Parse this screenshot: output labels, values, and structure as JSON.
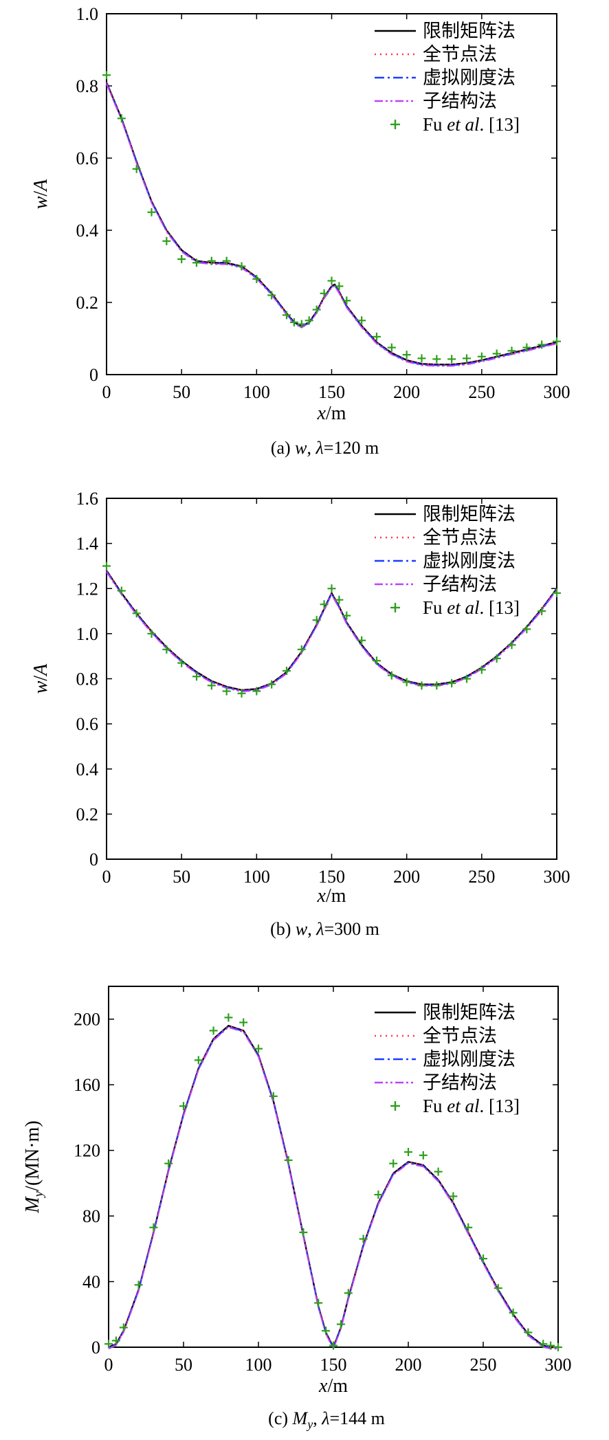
{
  "chart_data": [
    {
      "type": "line",
      "caption": "(a) w, λ=120 m",
      "caption_parts": {
        "label": "(a)",
        "var": "w",
        "sep": ",",
        "lambda": "λ",
        "rest": "=120 m"
      },
      "xlabel": {
        "var": "x",
        "unit": "/m"
      },
      "ylabel": {
        "var": "w",
        "sep": "/",
        "den": "A"
      },
      "xlim": [
        0,
        300
      ],
      "ylim": [
        0,
        1.0
      ],
      "x_ticks": [
        "0",
        "50",
        "100",
        "150",
        "200",
        "250",
        "300"
      ],
      "y_ticks": [
        "0",
        "0.2",
        "0.4",
        "0.6",
        "0.8",
        "1.0"
      ],
      "grid": false,
      "legend_position": "top-right",
      "legend": [
        {
          "name": "限制矩阵法",
          "style": "solid",
          "color": "#000000"
        },
        {
          "name": "全节点法",
          "style": "dotted",
          "color": "#ff3355"
        },
        {
          "name": "虚拟刚度法",
          "style": "dashdot",
          "color": "#1a3dff"
        },
        {
          "name": "子结构法",
          "style": "dashdotdot",
          "color": "#c040ff"
        },
        {
          "name": "Fu et al. [13]",
          "style": "plus",
          "color": "#2e9e1e",
          "parts": [
            "Fu ",
            "et al",
            ". [13]"
          ]
        }
      ],
      "curve": {
        "x": [
          0,
          10,
          20,
          30,
          40,
          50,
          60,
          70,
          80,
          90,
          100,
          110,
          120,
          125,
          130,
          135,
          140,
          145,
          150,
          152,
          155,
          160,
          170,
          180,
          190,
          200,
          210,
          220,
          230,
          240,
          250,
          260,
          270,
          280,
          290,
          300
        ],
        "y": [
          0.81,
          0.71,
          0.59,
          0.48,
          0.4,
          0.345,
          0.315,
          0.31,
          0.31,
          0.3,
          0.27,
          0.225,
          0.17,
          0.145,
          0.135,
          0.145,
          0.175,
          0.215,
          0.245,
          0.25,
          0.23,
          0.19,
          0.135,
          0.09,
          0.06,
          0.04,
          0.03,
          0.028,
          0.028,
          0.032,
          0.04,
          0.05,
          0.06,
          0.07,
          0.08,
          0.09
        ]
      },
      "fu_points": {
        "x": [
          0,
          10,
          20,
          30,
          40,
          50,
          60,
          70,
          80,
          90,
          100,
          110,
          120,
          125,
          130,
          135,
          140,
          145,
          150,
          155,
          160,
          170,
          180,
          190,
          200,
          210,
          220,
          230,
          240,
          250,
          260,
          270,
          280,
          290,
          300
        ],
        "y": [
          0.83,
          0.71,
          0.57,
          0.45,
          0.37,
          0.32,
          0.31,
          0.315,
          0.315,
          0.3,
          0.265,
          0.22,
          0.165,
          0.145,
          0.14,
          0.15,
          0.18,
          0.225,
          0.26,
          0.245,
          0.205,
          0.15,
          0.105,
          0.075,
          0.055,
          0.045,
          0.043,
          0.043,
          0.045,
          0.05,
          0.058,
          0.066,
          0.075,
          0.083,
          0.092
        ]
      }
    },
    {
      "type": "line",
      "caption": "(b) w, λ=300 m",
      "caption_parts": {
        "label": "(b)",
        "var": "w",
        "sep": ",",
        "lambda": "λ",
        "rest": "=300 m"
      },
      "xlabel": {
        "var": "x",
        "unit": "/m"
      },
      "ylabel": {
        "var": "w",
        "sep": "/",
        "den": "A"
      },
      "xlim": [
        0,
        300
      ],
      "ylim": [
        0,
        1.6
      ],
      "x_ticks": [
        "0",
        "50",
        "100",
        "150",
        "200",
        "250",
        "300"
      ],
      "y_ticks": [
        "0",
        "0.2",
        "0.4",
        "0.6",
        "0.8",
        "1.0",
        "1.2",
        "1.4",
        "1.6"
      ],
      "grid": false,
      "legend_position": "top-right",
      "legend": [
        {
          "name": "限制矩阵法",
          "style": "solid",
          "color": "#000000"
        },
        {
          "name": "全节点法",
          "style": "dotted",
          "color": "#ff3355"
        },
        {
          "name": "虚拟刚度法",
          "style": "dashdot",
          "color": "#1a3dff"
        },
        {
          "name": "子结构法",
          "style": "dashdotdot",
          "color": "#c040ff"
        },
        {
          "name": "Fu et al. [13]",
          "style": "plus",
          "color": "#2e9e1e",
          "parts": [
            "Fu ",
            "et al",
            ". [13]"
          ]
        }
      ],
      "curve": {
        "x": [
          0,
          10,
          20,
          30,
          40,
          50,
          60,
          70,
          80,
          90,
          100,
          110,
          120,
          130,
          140,
          145,
          150,
          155,
          160,
          170,
          180,
          190,
          200,
          210,
          220,
          230,
          240,
          250,
          260,
          270,
          280,
          290,
          300
        ],
        "y": [
          1.28,
          1.18,
          1.09,
          1.01,
          0.94,
          0.88,
          0.83,
          0.79,
          0.765,
          0.75,
          0.755,
          0.78,
          0.83,
          0.92,
          1.04,
          1.11,
          1.18,
          1.12,
          1.05,
          0.95,
          0.87,
          0.82,
          0.79,
          0.775,
          0.775,
          0.785,
          0.81,
          0.85,
          0.9,
          0.96,
          1.03,
          1.11,
          1.2
        ]
      },
      "fu_points": {
        "x": [
          0,
          10,
          20,
          30,
          40,
          50,
          60,
          70,
          80,
          90,
          100,
          110,
          120,
          130,
          140,
          145,
          150,
          155,
          160,
          170,
          180,
          190,
          200,
          210,
          220,
          230,
          240,
          250,
          260,
          270,
          280,
          290,
          300
        ],
        "y": [
          1.3,
          1.19,
          1.09,
          1.0,
          0.93,
          0.87,
          0.81,
          0.77,
          0.745,
          0.735,
          0.745,
          0.775,
          0.835,
          0.93,
          1.06,
          1.13,
          1.2,
          1.15,
          1.08,
          0.97,
          0.88,
          0.815,
          0.785,
          0.77,
          0.77,
          0.78,
          0.8,
          0.84,
          0.89,
          0.95,
          1.02,
          1.1,
          1.18
        ]
      }
    },
    {
      "type": "line",
      "caption": "(c) My, λ=144 m",
      "caption_parts": {
        "label": "(c)",
        "var": "M",
        "sub": "y",
        "sep": ",",
        "lambda": "λ",
        "rest": "=144 m"
      },
      "xlabel": {
        "var": "x",
        "unit": "/m"
      },
      "ylabel": {
        "var": "M",
        "sub": "y",
        "unit": "/(MN·m)"
      },
      "xlim": [
        0,
        300
      ],
      "ylim": [
        0,
        220
      ],
      "x_ticks": [
        "0",
        "50",
        "100",
        "150",
        "200",
        "250",
        "300"
      ],
      "y_ticks": [
        "0",
        "40",
        "80",
        "120",
        "160",
        "200"
      ],
      "grid": false,
      "legend_position": "top-right",
      "legend": [
        {
          "name": "限制矩阵法",
          "style": "solid",
          "color": "#000000"
        },
        {
          "name": "全节点法",
          "style": "dotted",
          "color": "#ff3355"
        },
        {
          "name": "虚拟刚度法",
          "style": "dashdot",
          "color": "#1a3dff"
        },
        {
          "name": "子结构法",
          "style": "dashdotdot",
          "color": "#c040ff"
        },
        {
          "name": "Fu et al. [13]",
          "style": "plus",
          "color": "#2e9e1e",
          "parts": [
            "Fu ",
            "et al",
            ". [13]"
          ]
        }
      ],
      "curve": {
        "x": [
          0,
          5,
          10,
          20,
          30,
          40,
          50,
          60,
          70,
          80,
          90,
          100,
          110,
          120,
          130,
          140,
          145,
          150,
          155,
          160,
          170,
          180,
          190,
          200,
          210,
          220,
          230,
          240,
          250,
          260,
          270,
          280,
          290,
          295,
          300
        ],
        "y": [
          0,
          2,
          10,
          35,
          70,
          108,
          142,
          170,
          188,
          196,
          193,
          178,
          150,
          112,
          68,
          25,
          9,
          0,
          12,
          30,
          62,
          88,
          106,
          113,
          111,
          102,
          88,
          70,
          52,
          35,
          20,
          8,
          1,
          0,
          0
        ]
      },
      "fu_points": {
        "x": [
          0,
          5,
          10,
          20,
          30,
          40,
          50,
          60,
          70,
          80,
          90,
          100,
          110,
          120,
          130,
          140,
          145,
          150,
          155,
          160,
          170,
          180,
          190,
          200,
          210,
          220,
          230,
          240,
          250,
          260,
          270,
          280,
          290,
          295,
          300
        ],
        "y": [
          2,
          4,
          12,
          38,
          73,
          112,
          147,
          175,
          193,
          201,
          198,
          182,
          153,
          114,
          70,
          27,
          10,
          1,
          14,
          33,
          66,
          93,
          112,
          119,
          117,
          107,
          92,
          73,
          54,
          36,
          21,
          9,
          2,
          1,
          0
        ]
      }
    }
  ]
}
